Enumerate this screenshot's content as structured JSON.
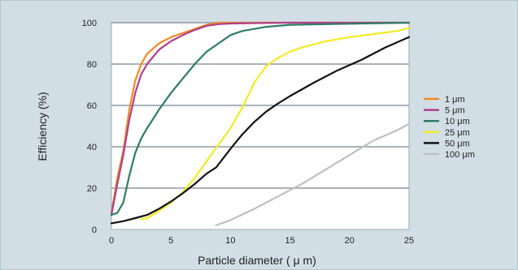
{
  "chart_data": {
    "type": "line",
    "title": "",
    "xlabel": "Particle diameter ( μ m)",
    "ylabel": "Efficiency (%)",
    "xlim": [
      0,
      25
    ],
    "ylim": [
      0,
      100
    ],
    "xticks": [
      0,
      5,
      10,
      15,
      20,
      25
    ],
    "yticks": [
      0,
      20,
      40,
      60,
      80,
      100
    ],
    "grid": "horizontal",
    "legend_position": "right",
    "series": [
      {
        "name": "1 μm",
        "color": "#f08a24",
        "x": [
          0,
          0.5,
          1,
          1.5,
          2,
          2.5,
          3,
          4,
          5,
          6,
          7,
          8,
          9,
          10,
          12,
          15,
          20,
          25
        ],
        "y": [
          8,
          25,
          38,
          58,
          72,
          80,
          85,
          90,
          93,
          95,
          97,
          99,
          100,
          100,
          100,
          100,
          100,
          100
        ]
      },
      {
        "name": "5 μm",
        "color": "#b03f8c",
        "x": [
          0,
          0.5,
          1,
          1.5,
          2,
          2.5,
          3,
          4,
          5,
          6,
          7,
          8,
          9,
          10,
          12,
          15,
          20,
          25
        ],
        "y": [
          7,
          22,
          36,
          53,
          66,
          75,
          80,
          87,
          91,
          94,
          96.5,
          98.5,
          99.3,
          99.6,
          99.8,
          100,
          100,
          100
        ]
      },
      {
        "name": "10 μm",
        "color": "#2e7d62",
        "x": [
          0,
          0.5,
          1,
          1.5,
          2,
          2.5,
          3,
          4,
          5,
          6,
          7,
          8,
          9,
          10,
          11,
          12,
          13,
          15,
          20,
          25
        ],
        "y": [
          7,
          8,
          13,
          26,
          37,
          44,
          49,
          58,
          66,
          73,
          80,
          86,
          90,
          94,
          96,
          97,
          98,
          99,
          99.5,
          100
        ]
      },
      {
        "name": "25 μm",
        "color": "#f3ea24",
        "x": [
          2.5,
          3,
          4,
          5,
          6,
          7,
          8,
          9,
          10,
          11,
          12,
          13,
          14,
          15,
          16,
          18,
          20,
          22,
          24,
          25
        ],
        "y": [
          5,
          5.5,
          9,
          13,
          18,
          25,
          33,
          41,
          49,
          59,
          71,
          79,
          83,
          86,
          88,
          91,
          93,
          94.5,
          96,
          97.5
        ]
      },
      {
        "name": "50 μm",
        "color": "#111111",
        "x": [
          0,
          1,
          2,
          3,
          4,
          5,
          6,
          7,
          8,
          8.8,
          10,
          11,
          12,
          13,
          14,
          15,
          17,
          19,
          21,
          23,
          25
        ],
        "y": [
          3,
          4,
          5.5,
          7,
          10,
          13.5,
          17.5,
          22,
          27,
          30,
          39,
          46,
          52,
          57,
          61,
          64.5,
          71,
          77,
          82,
          88,
          93
        ]
      },
      {
        "name": "100 μm",
        "color": "#bfbfbf",
        "x": [
          8.8,
          10,
          12,
          14,
          16,
          18,
          20,
          22,
          24,
          25
        ],
        "y": [
          2,
          4.5,
          10,
          16,
          22,
          29,
          36,
          43,
          48,
          51
        ]
      }
    ]
  }
}
